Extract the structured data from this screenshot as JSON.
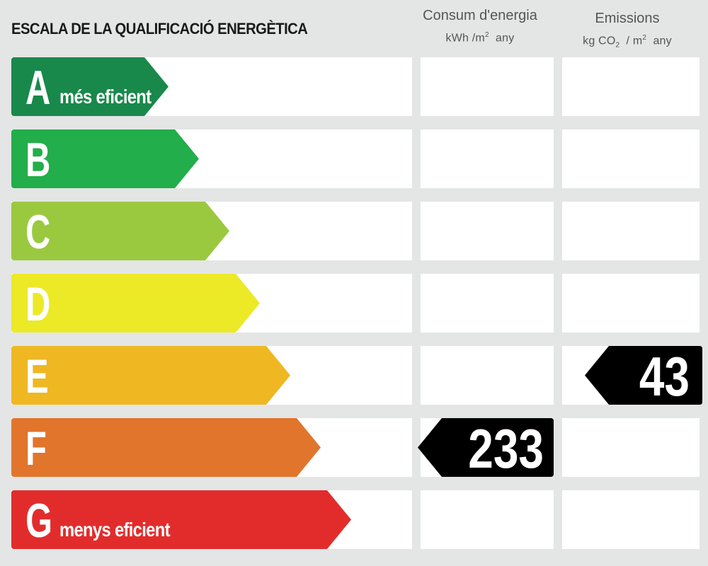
{
  "title": "ESCALA DE LA QUALIFICACIÓ ENERGÈTICA",
  "consum_header": {
    "line1": "Consum d'energia",
    "unit_prefix": "kWh /m",
    "unit_sup": "2",
    "unit_suffix": "any"
  },
  "emissions_header": {
    "line1": "Emissions",
    "unit_prefix": "kg CO",
    "unit_sub": "2",
    "unit_mid": "/ m",
    "unit_sup": "2",
    "unit_suffix": "any"
  },
  "ratings": [
    {
      "letter": "A",
      "color": "#18894a",
      "subtitle": "més eficient"
    },
    {
      "letter": "B",
      "color": "#22ae4a",
      "subtitle": ""
    },
    {
      "letter": "C",
      "color": "#9ac93f",
      "subtitle": ""
    },
    {
      "letter": "D",
      "color": "#ece927",
      "subtitle": ""
    },
    {
      "letter": "E",
      "color": "#efb721",
      "subtitle": ""
    },
    {
      "letter": "F",
      "color": "#e1752c",
      "subtitle": ""
    },
    {
      "letter": "G",
      "color": "#e22c2c",
      "subtitle": "menys eficient"
    }
  ],
  "consum": {
    "value": "233",
    "rating": "F"
  },
  "emissions": {
    "value": "43",
    "rating": "E"
  },
  "indicator_color": "#000000"
}
